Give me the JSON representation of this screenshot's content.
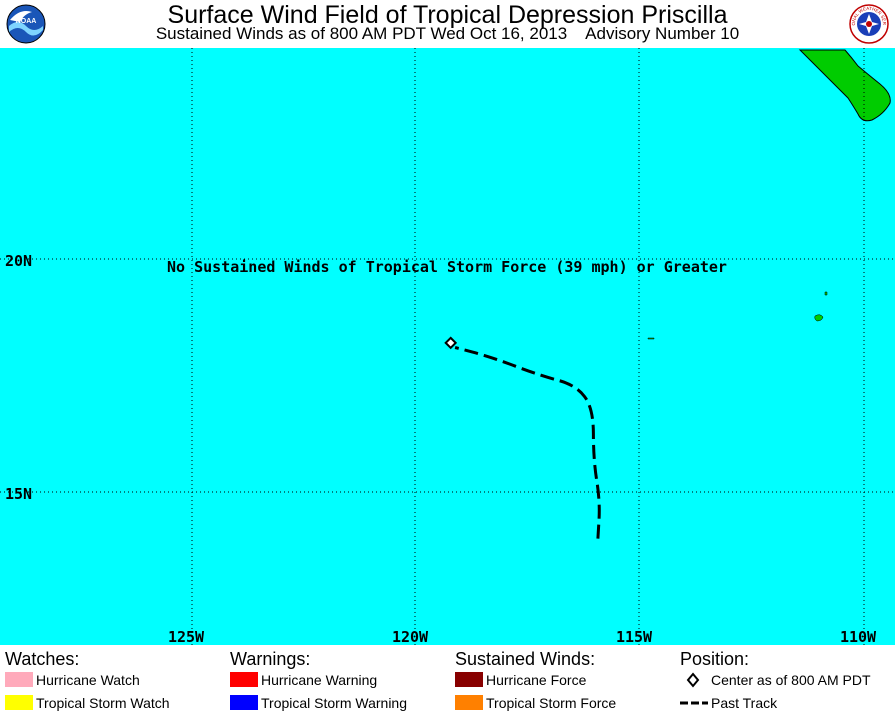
{
  "header": {
    "title": "Surface Wind Field of Tropical Depression Priscilla",
    "subtitle": "Sustained Winds as of 800 AM PDT Wed Oct 16, 2013    Advisory Number 10",
    "left_logo_text": "NOAA",
    "right_logo_text": "NATIONAL WEATHER SERVICE"
  },
  "map": {
    "ocean_color": "#00ffff",
    "land_color": "#00cc00",
    "lat_labels": [
      "20N",
      "15N"
    ],
    "lon_labels": [
      "125W",
      "120W",
      "115W",
      "110W"
    ],
    "message": "No Sustained Winds of Tropical Storm Force (39 mph) or Greater",
    "track": [
      {
        "lon": -115.9,
        "lat": 14.0
      },
      {
        "lon": -115.85,
        "lat": 14.8
      },
      {
        "lon": -116.0,
        "lat": 15.7
      },
      {
        "lon": -116.0,
        "lat": 16.8
      },
      {
        "lon": -116.4,
        "lat": 17.3
      },
      {
        "lon": -117.2,
        "lat": 17.5
      },
      {
        "lon": -118.3,
        "lat": 17.9
      },
      {
        "lon": -119.1,
        "lat": 18.1
      }
    ],
    "center": {
      "lon": -119.2,
      "lat": 18.2
    }
  },
  "legend": {
    "watches": {
      "heading": "Watches:",
      "items": [
        {
          "label": "Hurricane Watch",
          "color": "#ffaabb"
        },
        {
          "label": "Tropical Storm Watch",
          "color": "#ffff00"
        }
      ]
    },
    "warnings": {
      "heading": "Warnings:",
      "items": [
        {
          "label": "Hurricane Warning",
          "color": "#ff0000"
        },
        {
          "label": "Tropical Storm Warning",
          "color": "#0000ff"
        }
      ]
    },
    "winds": {
      "heading": "Sustained Winds:",
      "items": [
        {
          "label": "Hurricane Force",
          "color": "#880000"
        },
        {
          "label": "Tropical Storm Force",
          "color": "#ff8000"
        }
      ]
    },
    "position": {
      "heading": "Position:",
      "items": [
        {
          "label": "Center as of 800 AM PDT",
          "icon": "diamond-icon"
        },
        {
          "label": "Past Track",
          "icon": "dashed-line-icon"
        }
      ]
    }
  }
}
